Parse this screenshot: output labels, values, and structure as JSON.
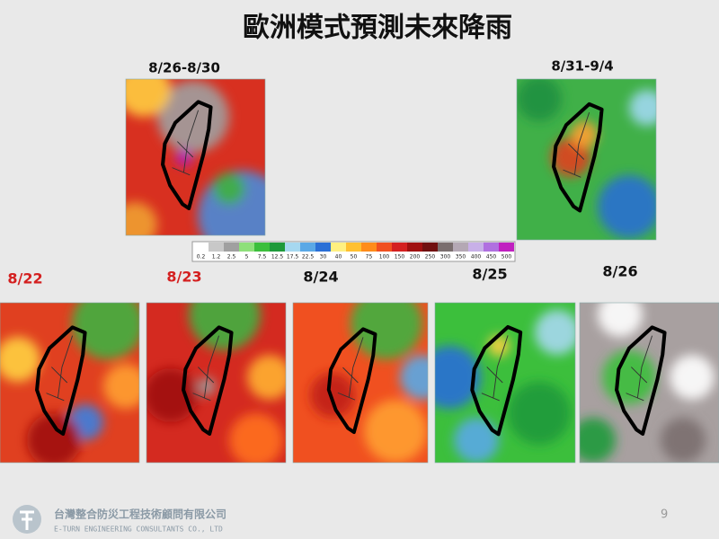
{
  "header": {
    "title": "歐洲模式預測未來降雨"
  },
  "top_maps": [
    {
      "label": "8/26-8/30"
    },
    {
      "label": "8/31-9/4"
    }
  ],
  "colorbar": {
    "ticks": [
      "0.2",
      "1.2",
      "2.5",
      "5",
      "7.5",
      "12.5",
      "17.5",
      "22.5",
      "30",
      "40",
      "50",
      "75",
      "100",
      "150",
      "200",
      "250",
      "300",
      "350",
      "400",
      "450",
      "500"
    ]
  },
  "daily_maps": [
    {
      "label": "8/22"
    },
    {
      "label": "8/23"
    },
    {
      "label": "8/24"
    },
    {
      "label": "8/25"
    },
    {
      "label": "8/26"
    }
  ],
  "footer": {
    "company_zh": "台灣整合防災工程技術顧問有限公司",
    "company_en": "E-TURN ENGINEERING CONSULTANTS CO., LTD",
    "page": "9"
  }
}
